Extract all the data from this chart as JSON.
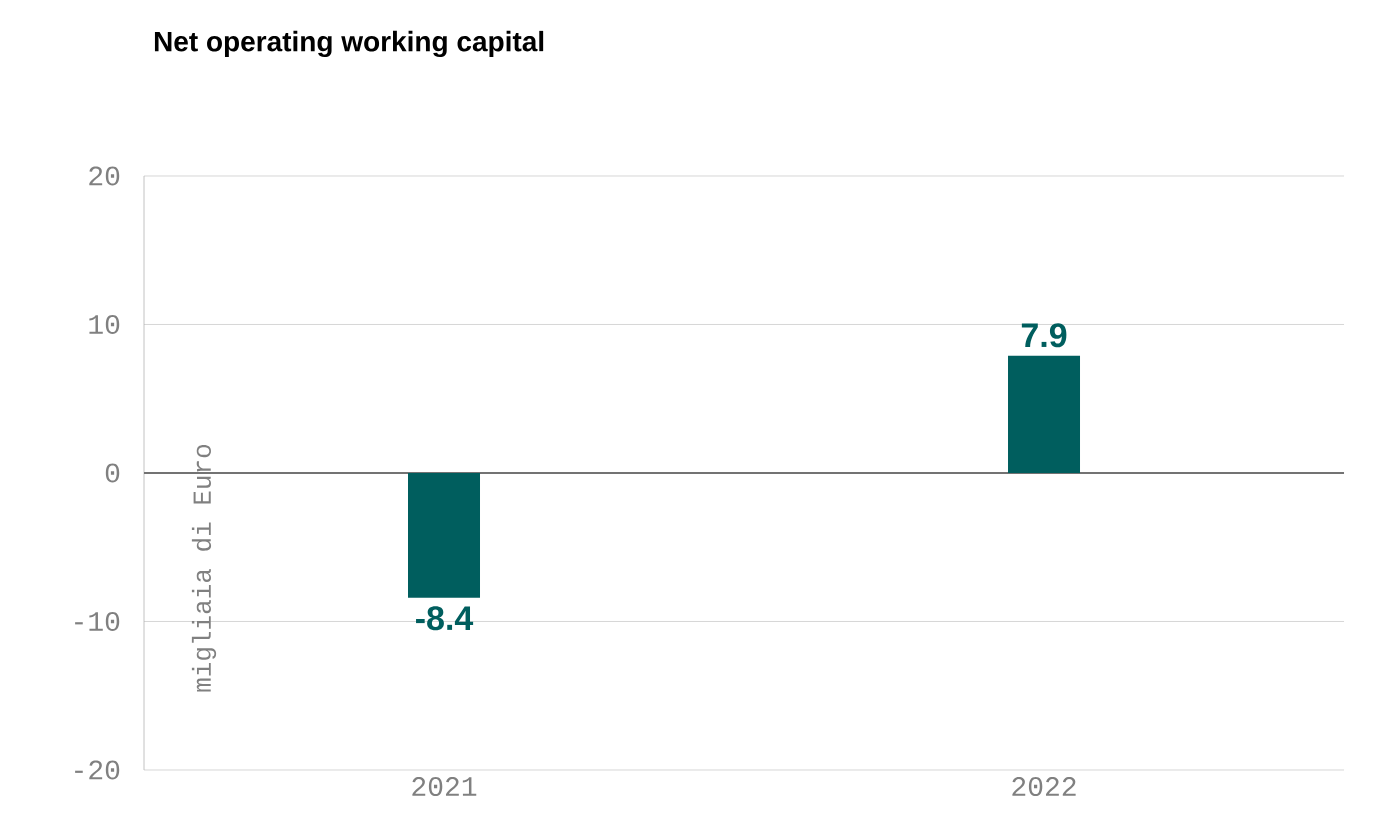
{
  "chart_data": {
    "type": "bar",
    "title": "Net operating working capital",
    "ylabel": "migliaia di Euro",
    "categories": [
      "2021",
      "2022"
    ],
    "values": [
      -8.4,
      7.9
    ],
    "color": "#005e5e",
    "ylim": [
      -20,
      20
    ],
    "yticks": [
      -20,
      -10,
      0,
      10,
      20
    ],
    "grid": "y",
    "data_labels": true
  }
}
